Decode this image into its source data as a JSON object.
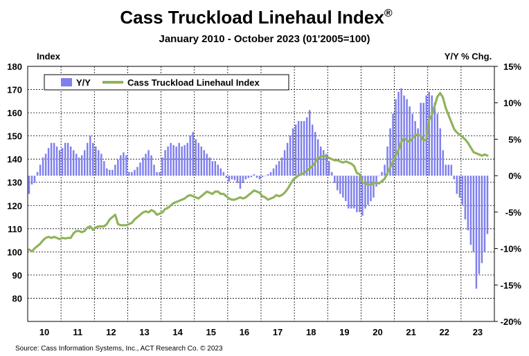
{
  "colors": {
    "bar": "#7f7fee",
    "line": "#8fb35a",
    "grid": "#000000",
    "background": "#ffffff"
  },
  "source": "Source: Cass Information Systems, Inc., ACT Research Co. © 2023",
  "chart_data": {
    "type": "bar+line",
    "title": "Cass Truckload Linehaul Index",
    "title_mark": "®",
    "subtitle": "January 2010 - October 2023 (01'2005=100)",
    "left_axis_label": "Index",
    "right_axis_label": "Y/Y % Chg.",
    "left_ylim": [
      70,
      180
    ],
    "left_ticks": [
      80,
      90,
      100,
      110,
      120,
      130,
      140,
      150,
      160,
      170,
      180
    ],
    "right_ylim": [
      -20,
      15
    ],
    "right_ticks": [
      "15%",
      "10%",
      "5%",
      "0%",
      "-5%",
      "-10%",
      "-15%",
      "-20%"
    ],
    "right_tick_values": [
      15,
      10,
      5,
      0,
      -5,
      -10,
      -15,
      -20
    ],
    "x_tick_labels": [
      "10",
      "11",
      "12",
      "13",
      "14",
      "15",
      "16",
      "17",
      "18",
      "19",
      "20",
      "21",
      "22",
      "23"
    ],
    "grid": true,
    "legend": {
      "placement": "top-left",
      "entries": [
        "Y/Y",
        "Cass Truckload Linehaul Index"
      ]
    },
    "series": [
      {
        "name": "Y/Y",
        "kind": "bar",
        "axis": "right",
        "unit": "%",
        "start": "2010-01",
        "values": [
          -2.5,
          -1.2,
          -1.0,
          0.5,
          1.5,
          2.5,
          3.0,
          3.8,
          4.5,
          4.5,
          4.0,
          3.5,
          3.8,
          4.5,
          4.5,
          4.0,
          3.5,
          3.0,
          2.5,
          2.8,
          3.5,
          4.5,
          5.5,
          4.5,
          4.0,
          3.5,
          3.0,
          2.0,
          1.0,
          0.8,
          0.8,
          1.5,
          2.2,
          2.8,
          3.2,
          2.8,
          0.5,
          0.5,
          0.8,
          1.2,
          1.8,
          2.5,
          3.0,
          3.5,
          2.8,
          1.5,
          0.5,
          0.5,
          2.5,
          3.5,
          4.0,
          4.5,
          4.2,
          4.0,
          4.5,
          4.0,
          4.2,
          4.5,
          5.5,
          6.0,
          5.0,
          4.5,
          4.0,
          3.5,
          3.0,
          2.5,
          2.0,
          2.0,
          1.5,
          1.0,
          0.5,
          -0.3,
          -0.8,
          -0.5,
          -0.6,
          -1.0,
          -1.8,
          -1.0,
          -0.5,
          -0.3,
          -0.2,
          0.2,
          -0.3,
          -0.5,
          -0.2,
          0.0,
          0.2,
          0.5,
          1.0,
          1.5,
          2.0,
          2.5,
          3.5,
          4.5,
          5.5,
          6.5,
          7.0,
          7.5,
          7.5,
          7.5,
          8.0,
          9.0,
          7.0,
          6.0,
          5.0,
          4.0,
          3.5,
          3.0,
          2.0,
          0.5,
          -1.0,
          -2.0,
          -2.5,
          -3.0,
          -3.5,
          -4.5,
          -4.5,
          -4.5,
          -5.0,
          -5.0,
          -5.5,
          -4.5,
          -4.0,
          -3.5,
          -3.0,
          -1.5,
          0.0,
          0.5,
          1.5,
          4.0,
          6.5,
          8.5,
          10.5,
          11.5,
          12.0,
          11.0,
          10.5,
          9.5,
          8.5,
          7.5,
          6.5,
          10.0,
          10.0,
          11.0,
          11.5,
          11.0,
          10.0,
          8.5,
          6.5,
          3.5,
          1.5,
          1.5,
          1.5,
          -0.5,
          -2.5,
          -3.0,
          -4.0,
          -6.0,
          -7.5,
          -9.5,
          -10.5,
          -15.5,
          -13.5,
          -12.0,
          -10.5,
          -8.0
        ]
      },
      {
        "name": "Cass Truckload Linehaul Index",
        "kind": "line",
        "axis": "left",
        "start": "2010-01",
        "values": [
          101.0,
          100.2,
          101.5,
          102.5,
          103.5,
          105.0,
          106.0,
          106.5,
          106.0,
          106.5,
          106.0,
          105.5,
          106.0,
          105.8,
          106.0,
          106.0,
          108.0,
          109.0,
          109.0,
          108.5,
          109.0,
          110.5,
          111.0,
          109.5,
          110.5,
          111.0,
          111.0,
          111.0,
          112.0,
          114.0,
          115.0,
          116.0,
          112.0,
          111.5,
          111.5,
          111.5,
          112.0,
          112.5,
          114.0,
          115.0,
          116.0,
          117.0,
          117.5,
          117.0,
          118.0,
          117.5,
          116.0,
          116.5,
          117.0,
          118.5,
          119.0,
          120.0,
          121.0,
          121.5,
          122.0,
          122.5,
          123.0,
          124.0,
          124.5,
          124.0,
          123.5,
          123.0,
          124.0,
          125.0,
          126.0,
          125.5,
          125.0,
          126.0,
          126.0,
          125.0,
          125.0,
          124.0,
          123.0,
          122.5,
          122.5,
          123.0,
          123.5,
          123.0,
          123.5,
          124.5,
          125.5,
          126.5,
          126.0,
          125.5,
          124.0,
          123.5,
          122.5,
          123.0,
          123.5,
          124.5,
          124.0,
          124.5,
          125.5,
          127.0,
          129.0,
          131.0,
          132.0,
          133.0,
          133.5,
          134.0,
          135.0,
          136.0,
          137.0,
          138.5,
          140.5,
          141.0,
          141.5,
          141.0,
          140.5,
          140.0,
          139.5,
          139.5,
          139.0,
          138.5,
          139.0,
          138.5,
          138.0,
          137.0,
          134.0,
          133.5,
          130.0,
          129.5,
          129.0,
          129.0,
          129.5,
          130.0,
          129.5,
          130.5,
          131.5,
          134.0,
          136.5,
          139.0,
          141.5,
          144.0,
          147.5,
          149.0,
          148.0,
          147.5,
          149.0,
          150.5,
          150.5,
          150.0,
          148.0,
          148.5,
          157.0,
          159.0,
          163.0,
          167.0,
          168.5,
          166.5,
          162.0,
          159.0,
          156.0,
          153.0,
          151.5,
          150.5,
          149.5,
          148.5,
          147.0,
          145.0,
          143.0,
          142.5,
          142.0,
          141.5,
          142.0,
          141.5
        ]
      }
    ]
  }
}
